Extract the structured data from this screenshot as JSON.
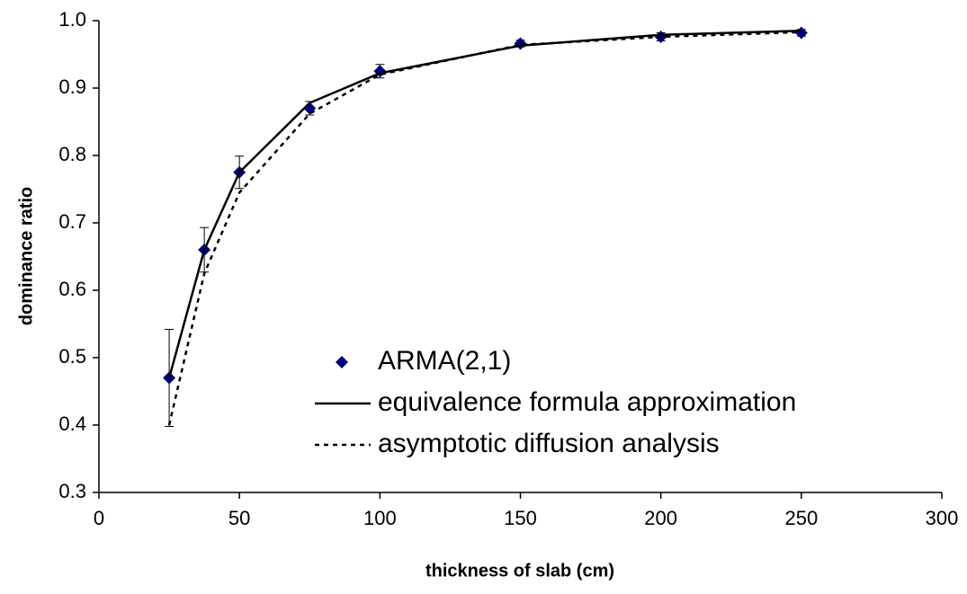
{
  "chart_data": {
    "type": "line",
    "x_label": "thickness of slab (cm)",
    "y_label": "dominance ratio",
    "xlim": [
      0,
      300
    ],
    "xticks": [
      0,
      50,
      100,
      150,
      200,
      250,
      300
    ],
    "ylim": [
      0.3,
      1.0
    ],
    "yticks": [
      {
        "value": 0.3,
        "label": "0.3"
      },
      {
        "value": 0.4,
        "label": "0.4"
      },
      {
        "value": 0.5,
        "label": "0.5"
      },
      {
        "value": 0.6,
        "label": "0.6"
      },
      {
        "value": 0.7,
        "label": "0.7"
      },
      {
        "value": 0.8,
        "label": "0.8"
      },
      {
        "value": 0.9,
        "label": "0.9"
      },
      {
        "value": 1.0,
        "label": "1.0"
      }
    ],
    "grid": false,
    "series": [
      {
        "name": "ARMA(2,1)",
        "color": "#000080",
        "style": "markers",
        "x": [
          25,
          37.5,
          50,
          75,
          100,
          150,
          200,
          250
        ],
        "values": [
          0.47,
          0.66,
          0.775,
          0.87,
          0.925,
          0.966,
          0.976,
          0.982
        ],
        "errors": [
          0.072,
          0.033,
          0.024,
          0.01,
          0.01,
          0.005,
          0.006,
          0.005
        ]
      },
      {
        "name": "equivalence formula approximation",
        "color": "#000000",
        "style": "solid",
        "x": [
          25,
          37.5,
          50,
          75,
          100,
          150,
          200,
          250
        ],
        "values": [
          0.47,
          0.66,
          0.775,
          0.878,
          0.922,
          0.963,
          0.979,
          0.985
        ]
      },
      {
        "name": "asymptotic diffusion analysis",
        "color": "#000000",
        "style": "dotted",
        "x": [
          25,
          37.5,
          50,
          75,
          100,
          150,
          200,
          250
        ],
        "values": [
          0.4,
          0.625,
          0.745,
          0.862,
          0.92,
          0.964,
          0.976,
          0.983
        ]
      }
    ]
  }
}
